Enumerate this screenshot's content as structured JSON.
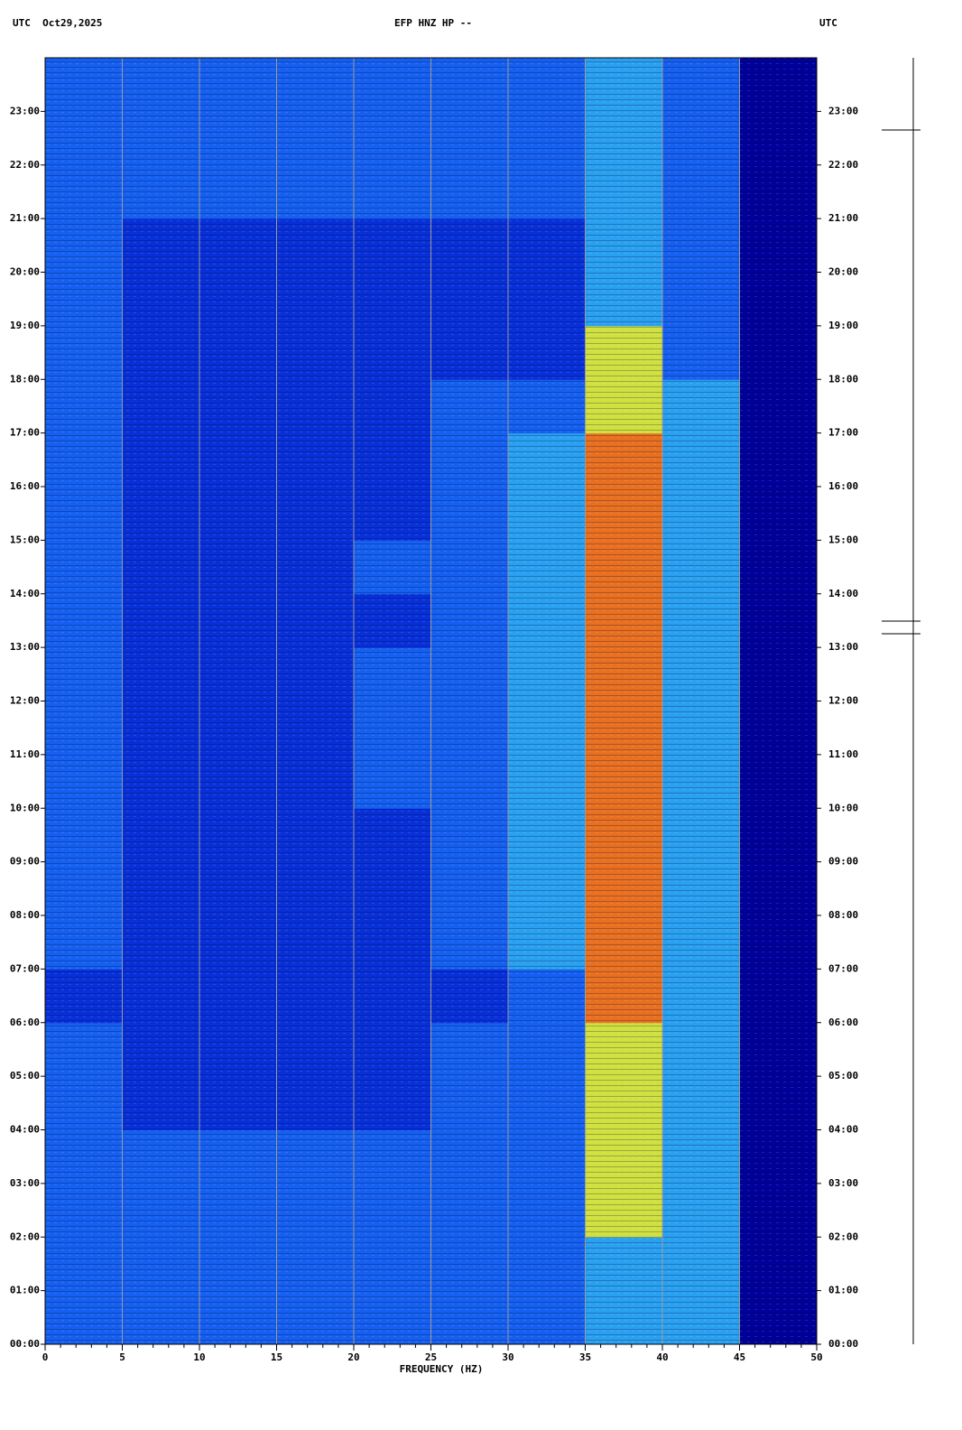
{
  "chart_data": {
    "type": "spectrogram",
    "header_left": "UTC  Oct29,2025",
    "title": "EFP HNZ HP --",
    "header_right": "UTC",
    "xlabel": "FREQUENCY (HZ)",
    "xlim": [
      0,
      50
    ],
    "xticks": [
      0,
      5,
      10,
      15,
      20,
      25,
      30,
      35,
      40,
      45,
      50
    ],
    "xminorticks": [
      1,
      2,
      3,
      4,
      6,
      7,
      8,
      9,
      11,
      12,
      13,
      14,
      16,
      17,
      18,
      19,
      21,
      22,
      23,
      24,
      26,
      27,
      28,
      29,
      31,
      32,
      33,
      34,
      36,
      37,
      38,
      39,
      41,
      42,
      43,
      44,
      46,
      47,
      48,
      49
    ],
    "ylim": [
      0,
      24
    ],
    "yticks": [
      {
        "value": 0,
        "label": "00:00"
      },
      {
        "value": 1,
        "label": "01:00"
      },
      {
        "value": 2,
        "label": "02:00"
      },
      {
        "value": 3,
        "label": "03:00"
      },
      {
        "value": 4,
        "label": "04:00"
      },
      {
        "value": 5,
        "label": "05:00"
      },
      {
        "value": 6,
        "label": "06:00"
      },
      {
        "value": 7,
        "label": "07:00"
      },
      {
        "value": 8,
        "label": "08:00"
      },
      {
        "value": 9,
        "label": "09:00"
      },
      {
        "value": 10,
        "label": "10:00"
      },
      {
        "value": 11,
        "label": "11:00"
      },
      {
        "value": 12,
        "label": "12:00"
      },
      {
        "value": 13,
        "label": "13:00"
      },
      {
        "value": 14,
        "label": "14:00"
      },
      {
        "value": 15,
        "label": "15:00"
      },
      {
        "value": 16,
        "label": "16:00"
      },
      {
        "value": 17,
        "label": "17:00"
      },
      {
        "value": 18,
        "label": "18:00"
      },
      {
        "value": 19,
        "label": "19:00"
      },
      {
        "value": 20,
        "label": "20:00"
      },
      {
        "value": 21,
        "label": "21:00"
      },
      {
        "value": 22,
        "label": "22:00"
      },
      {
        "value": 23,
        "label": "23:00"
      }
    ],
    "grid": true,
    "freq_bins": [
      0,
      5,
      10,
      15,
      20,
      25,
      30,
      35,
      40,
      45,
      50
    ],
    "hour_bins": [
      0,
      1,
      2,
      3,
      4,
      5,
      6,
      7,
      8,
      9,
      10,
      11,
      12,
      13,
      14,
      15,
      16,
      17,
      18,
      19,
      20,
      21,
      22,
      23,
      24
    ],
    "colorscale": [
      "#00009a",
      "#0830d8",
      "#1560f0",
      "#2aa0f0",
      "#d0e040",
      "#e87020"
    ],
    "z": [
      [
        2,
        2,
        2,
        2,
        2,
        2,
        2,
        3,
        3,
        0
      ],
      [
        2,
        2,
        2,
        2,
        2,
        2,
        2,
        3,
        3,
        0
      ],
      [
        2,
        2,
        2,
        2,
        2,
        2,
        2,
        4,
        3,
        0
      ],
      [
        2,
        2,
        2,
        2,
        2,
        2,
        2,
        4,
        3,
        0
      ],
      [
        2,
        1,
        1,
        1,
        1,
        2,
        2,
        4,
        3,
        0
      ],
      [
        2,
        1,
        1,
        1,
        1,
        2,
        2,
        4,
        3,
        0
      ],
      [
        1,
        1,
        1,
        1,
        1,
        1,
        2,
        5,
        3,
        0
      ],
      [
        2,
        1,
        1,
        1,
        1,
        2,
        3,
        5,
        3,
        0
      ],
      [
        2,
        1,
        1,
        1,
        1,
        2,
        3,
        5,
        3,
        0
      ],
      [
        2,
        1,
        1,
        1,
        1,
        2,
        3,
        5,
        3,
        0
      ],
      [
        2,
        1,
        1,
        1,
        2,
        2,
        3,
        5,
        3,
        0
      ],
      [
        2,
        1,
        1,
        1,
        2,
        2,
        3,
        5,
        3,
        0
      ],
      [
        2,
        1,
        1,
        1,
        2,
        2,
        3,
        5,
        3,
        0
      ],
      [
        2,
        1,
        1,
        1,
        1,
        2,
        3,
        5,
        3,
        0
      ],
      [
        2,
        1,
        1,
        1,
        2,
        2,
        3,
        5,
        3,
        0
      ],
      [
        2,
        1,
        1,
        1,
        1,
        2,
        3,
        5,
        3,
        0
      ],
      [
        2,
        1,
        1,
        1,
        1,
        2,
        3,
        5,
        3,
        0
      ],
      [
        2,
        1,
        1,
        1,
        1,
        2,
        2,
        4,
        3,
        0
      ],
      [
        2,
        1,
        1,
        1,
        1,
        1,
        1,
        4,
        2,
        0
      ],
      [
        2,
        1,
        1,
        1,
        1,
        1,
        1,
        3,
        2,
        0
      ],
      [
        2,
        1,
        1,
        1,
        1,
        1,
        1,
        3,
        2,
        0
      ],
      [
        2,
        2,
        2,
        2,
        2,
        2,
        2,
        3,
        2,
        0
      ],
      [
        2,
        2,
        2,
        2,
        2,
        2,
        2,
        3,
        2,
        0
      ],
      [
        2,
        2,
        2,
        2,
        2,
        2,
        2,
        3,
        2,
        0
      ]
    ]
  }
}
